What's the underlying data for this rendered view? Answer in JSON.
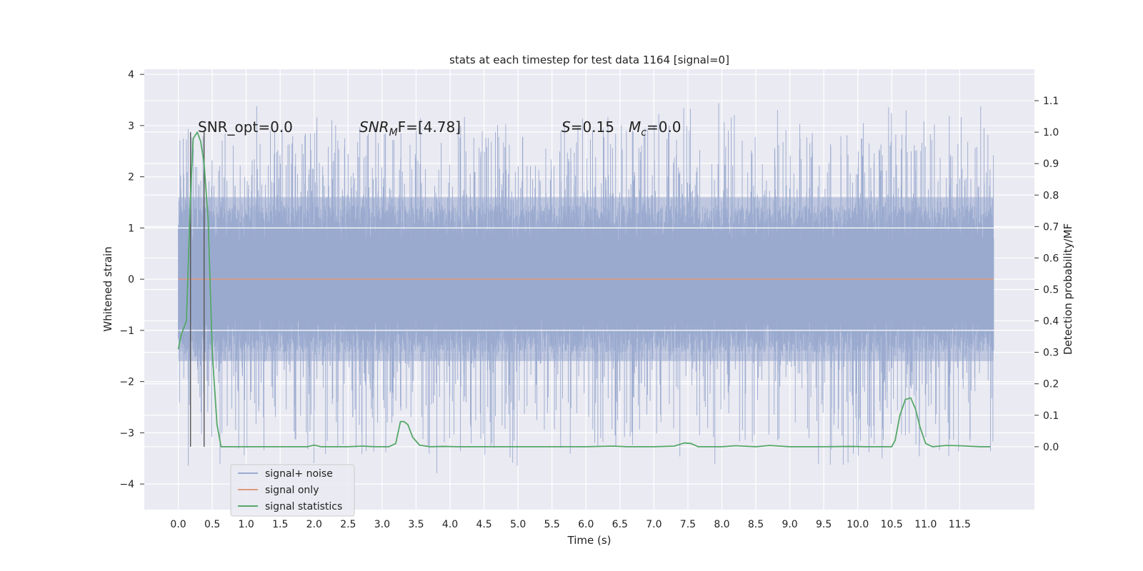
{
  "chart_data": {
    "type": "line",
    "title": "stats at each timestep for test data 1164 [signal=0]",
    "xlabel": "Time (s)",
    "ylabel_left": "Whitened strain",
    "ylabel_right": "Detection probability/MF",
    "xlim": [
      -0.5,
      12.6
    ],
    "ylim_left": [
      -4.5,
      4.1
    ],
    "ylim_right": [
      -0.2,
      1.2
    ],
    "xticks": [
      "0.0",
      "0.5",
      "1.0",
      "1.5",
      "2.0",
      "2.5",
      "3.0",
      "3.5",
      "4.0",
      "4.5",
      "5.0",
      "5.5",
      "6.0",
      "6.5",
      "7.0",
      "7.5",
      "8.0",
      "8.5",
      "9.0",
      "9.5",
      "10.0",
      "10.5",
      "11.0",
      "11.5"
    ],
    "yticks_left": [
      "4",
      "3",
      "2",
      "1",
      "0",
      "−1",
      "−2",
      "−3",
      "−4"
    ],
    "yticks_right": [
      "1.1",
      "1.0",
      "0.9",
      "0.8",
      "0.7",
      "0.6",
      "0.5",
      "0.4",
      "0.3",
      "0.2",
      "0.1",
      "0.0"
    ],
    "grid": true,
    "legend_placement": "lower-left",
    "annotations": {
      "snr_opt": "SNR_opt=0.0",
      "snr_mf_main": "SNR",
      "snr_mf_sub": "M",
      "snr_mf_rest": "F=[4.78]",
      "s_main": "S",
      "s_rest": "=0.15",
      "mc_main": "M",
      "mc_sub": "c",
      "mc_rest": "=0.0"
    },
    "vlines_x": [
      0.18,
      0.38
    ],
    "vline_color": "#555555",
    "series": [
      {
        "name": "signal+ noise",
        "axis": "left",
        "color": "#9aaacf",
        "x_range": [
          0.0,
          12.0
        ],
        "envelope": {
          "core": 1.6,
          "peak_max": 3.65,
          "trough_min": -4.05
        }
      },
      {
        "name": "signal only",
        "axis": "left",
        "color": "#dd9a80",
        "x": [
          0.0,
          12.0
        ],
        "y": [
          0.0,
          0.0
        ]
      },
      {
        "name": "signal statistics",
        "axis": "right",
        "color": "#55a868",
        "x": [
          0.0,
          0.05,
          0.12,
          0.18,
          0.22,
          0.28,
          0.33,
          0.38,
          0.44,
          0.5,
          0.57,
          0.63,
          0.8,
          1.0,
          1.5,
          1.9,
          2.0,
          2.1,
          2.3,
          2.5,
          2.7,
          2.9,
          3.1,
          3.2,
          3.27,
          3.32,
          3.38,
          3.45,
          3.55,
          3.7,
          3.9,
          4.1,
          4.3,
          4.6,
          5.0,
          5.5,
          6.0,
          6.4,
          6.6,
          7.0,
          7.3,
          7.45,
          7.55,
          7.65,
          7.8,
          8.0,
          8.2,
          8.5,
          8.7,
          9.0,
          9.5,
          9.9,
          10.1,
          10.3,
          10.5,
          10.55,
          10.62,
          10.7,
          10.78,
          10.85,
          10.92,
          11.0,
          11.1,
          11.3,
          11.5,
          11.8,
          11.95
        ],
        "y": [
          0.31,
          0.36,
          0.4,
          0.8,
          0.98,
          1.0,
          0.97,
          0.9,
          0.72,
          0.3,
          0.07,
          0.0,
          0.0,
          0.0,
          0.0,
          0.0,
          0.005,
          0.0,
          0.0,
          0.0,
          0.002,
          0.0,
          0.0,
          0.01,
          0.08,
          0.08,
          0.07,
          0.03,
          0.005,
          0.0,
          0.001,
          0.0,
          0.0,
          0.0,
          0.0,
          0.0,
          0.0,
          0.002,
          0.0,
          0.0,
          0.002,
          0.012,
          0.01,
          0.0,
          0.0,
          0.0,
          0.003,
          0.0,
          0.004,
          0.0,
          0.0,
          0.001,
          0.0,
          0.0,
          0.0,
          0.02,
          0.1,
          0.15,
          0.155,
          0.12,
          0.06,
          0.01,
          0.0,
          0.004,
          0.003,
          0.0,
          0.0
        ]
      }
    ]
  }
}
